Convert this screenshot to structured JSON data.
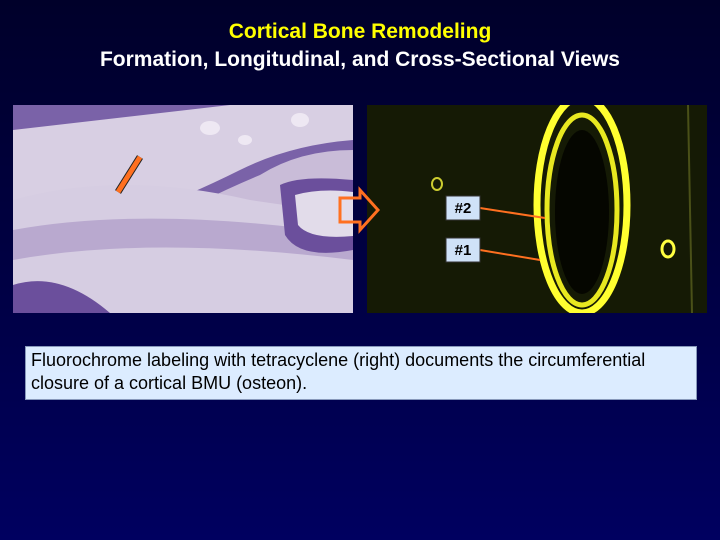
{
  "title": {
    "line1": "Cortical Bone Remodeling",
    "line2": "Formation, Longitudinal, and Cross-Sectional Views"
  },
  "labels": [
    "#2",
    "#1"
  ],
  "caption": "Fluorochrome labeling with tetracyclene (right) documents the circumferential closure of a cortical BMU (osteon)."
}
